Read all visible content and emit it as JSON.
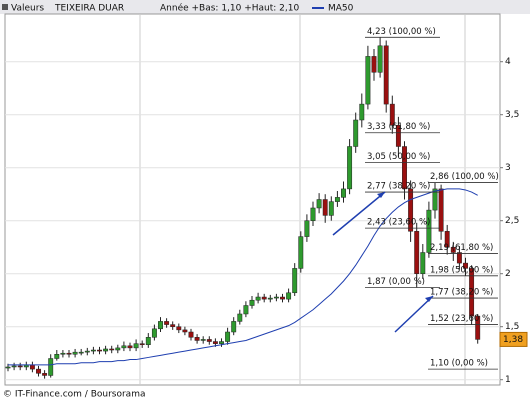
{
  "header": {
    "label": "Valeurs",
    "symbol": "TEIXEIRA DUAR",
    "range_text": "Année +Bas: 1,10 +Haut: 2,10"
  },
  "footer": "© IT-Finance.com / Boursorama",
  "chart_data": {
    "type": "candlestick",
    "categories": [
      null,
      null,
      null,
      null,
      null,
      null,
      null,
      null,
      null,
      null,
      null,
      null,
      null,
      null,
      null,
      null,
      null,
      null,
      null,
      null,
      null,
      null,
      null,
      null,
      null,
      null,
      null,
      null,
      null,
      null,
      null,
      null,
      null,
      null,
      null,
      null,
      null,
      null,
      null,
      null,
      null,
      null,
      null,
      null,
      null,
      null,
      null,
      null,
      null,
      null,
      null,
      null,
      null,
      null,
      null,
      null,
      null,
      null,
      null,
      null,
      null,
      null,
      null,
      null,
      null,
      null,
      null,
      null,
      null,
      null,
      null,
      null,
      null,
      null,
      null,
      null,
      null,
      null
    ],
    "open": [
      1.11,
      1.12,
      1.13,
      1.12,
      1.14,
      1.1,
      1.06,
      1.04,
      1.2,
      1.24,
      1.25,
      1.24,
      1.26,
      1.26,
      1.27,
      1.28,
      1.27,
      1.29,
      1.28,
      1.3,
      1.32,
      1.3,
      1.34,
      1.33,
      1.4,
      1.48,
      1.55,
      1.52,
      1.5,
      1.47,
      1.45,
      1.4,
      1.37,
      1.38,
      1.36,
      1.34,
      1.36,
      1.45,
      1.55,
      1.62,
      1.7,
      1.75,
      1.78,
      1.76,
      1.77,
      1.78,
      1.76,
      1.82,
      2.05,
      2.35,
      2.5,
      2.62,
      2.7,
      2.55,
      2.68,
      2.72,
      2.8,
      3.2,
      3.45,
      3.6,
      4.05,
      3.9,
      4.15,
      3.6,
      3.4,
      3.2,
      2.8,
      2.4,
      2.0,
      2.2,
      2.6,
      2.8,
      2.4,
      2.25,
      2.2,
      2.1,
      2.05,
      1.6
    ],
    "high": [
      1.15,
      1.16,
      1.16,
      1.17,
      1.17,
      1.13,
      1.09,
      1.24,
      1.28,
      1.28,
      1.28,
      1.29,
      1.29,
      1.3,
      1.31,
      1.31,
      1.32,
      1.32,
      1.33,
      1.36,
      1.35,
      1.38,
      1.37,
      1.44,
      1.52,
      1.59,
      1.58,
      1.55,
      1.53,
      1.5,
      1.48,
      1.43,
      1.41,
      1.41,
      1.39,
      1.39,
      1.49,
      1.59,
      1.66,
      1.74,
      1.79,
      1.82,
      1.81,
      1.8,
      1.81,
      1.81,
      1.86,
      2.1,
      2.4,
      2.56,
      2.68,
      2.76,
      2.75,
      2.73,
      2.78,
      2.87,
      3.27,
      3.52,
      3.7,
      4.15,
      4.12,
      4.23,
      4.2,
      3.68,
      3.48,
      3.25,
      2.88,
      2.48,
      2.28,
      2.68,
      2.86,
      2.84,
      2.46,
      2.3,
      2.26,
      2.15,
      2.08,
      1.62
    ],
    "low": [
      1.08,
      1.09,
      1.09,
      1.09,
      1.07,
      1.03,
      1.01,
      1.02,
      1.18,
      1.21,
      1.21,
      1.21,
      1.23,
      1.23,
      1.24,
      1.24,
      1.24,
      1.25,
      1.25,
      1.27,
      1.27,
      1.27,
      1.3,
      1.3,
      1.37,
      1.45,
      1.49,
      1.47,
      1.44,
      1.42,
      1.37,
      1.34,
      1.34,
      1.33,
      1.31,
      1.31,
      1.33,
      1.42,
      1.52,
      1.59,
      1.67,
      1.72,
      1.73,
      1.73,
      1.74,
      1.73,
      1.73,
      1.79,
      2.01,
      2.3,
      2.45,
      2.57,
      2.48,
      2.5,
      2.63,
      2.67,
      2.75,
      3.14,
      3.38,
      3.55,
      3.82,
      3.85,
      3.52,
      3.32,
      3.1,
      2.7,
      2.3,
      1.87,
      1.95,
      2.15,
      2.52,
      2.32,
      2.18,
      2.12,
      2.04,
      1.98,
      1.52,
      1.34
    ],
    "close": [
      1.12,
      1.13,
      1.12,
      1.14,
      1.1,
      1.06,
      1.04,
      1.2,
      1.24,
      1.25,
      1.24,
      1.26,
      1.26,
      1.27,
      1.28,
      1.27,
      1.29,
      1.28,
      1.3,
      1.32,
      1.3,
      1.34,
      1.33,
      1.4,
      1.48,
      1.55,
      1.52,
      1.5,
      1.47,
      1.45,
      1.4,
      1.37,
      1.38,
      1.36,
      1.34,
      1.36,
      1.45,
      1.55,
      1.62,
      1.7,
      1.75,
      1.78,
      1.76,
      1.77,
      1.78,
      1.76,
      1.82,
      2.05,
      2.35,
      2.5,
      2.62,
      2.7,
      2.55,
      2.68,
      2.72,
      2.8,
      3.2,
      3.45,
      3.6,
      4.05,
      3.9,
      4.15,
      3.6,
      3.4,
      3.2,
      2.8,
      2.4,
      2.0,
      2.2,
      2.6,
      2.8,
      2.4,
      2.25,
      2.2,
      2.1,
      2.05,
      1.6,
      1.38
    ],
    "up_color": "#2e9a2e",
    "down_color": "#9a1010",
    "series": [
      {
        "name": "MA50",
        "color": "#1f3fb0",
        "values": [
          1.14,
          1.14,
          1.14,
          1.14,
          1.14,
          1.14,
          1.14,
          1.14,
          1.15,
          1.15,
          1.15,
          1.15,
          1.16,
          1.16,
          1.16,
          1.17,
          1.17,
          1.17,
          1.18,
          1.18,
          1.19,
          1.19,
          1.2,
          1.21,
          1.22,
          1.23,
          1.24,
          1.25,
          1.26,
          1.27,
          1.28,
          1.29,
          1.3,
          1.31,
          1.32,
          1.33,
          1.34,
          1.35,
          1.36,
          1.37,
          1.39,
          1.41,
          1.43,
          1.45,
          1.47,
          1.49,
          1.51,
          1.54,
          1.58,
          1.62,
          1.66,
          1.71,
          1.76,
          1.81,
          1.87,
          1.93,
          2.0,
          2.08,
          2.17,
          2.26,
          2.36,
          2.45,
          2.52,
          2.58,
          2.63,
          2.67,
          2.7,
          2.72,
          2.74,
          2.76,
          2.78,
          2.79,
          2.8,
          2.8,
          2.8,
          2.79,
          2.77,
          2.74
        ]
      }
    ],
    "ylim": [
      0.95,
      4.45
    ],
    "yticks": [
      1,
      {
        "value": 1.5,
        "label": "1,5"
      },
      2,
      {
        "value": 2.5,
        "label": "2,5"
      },
      3,
      {
        "value": 3.5,
        "label": "3,5"
      },
      4
    ],
    "grid": true,
    "last_price": {
      "value": 1.38,
      "label": "1,38"
    },
    "fibonacci": [
      [
        {
          "value": 4.23,
          "label": "4,23 (100,00 %)"
        },
        {
          "value": 3.33,
          "label": "3,33 (61,80 %)"
        },
        {
          "value": 3.05,
          "label": "3,05 (50,00 %)"
        },
        {
          "value": 2.77,
          "label": "2,77 (38,20 %)"
        },
        {
          "value": 2.43,
          "label": "2,43 (23,60 %)"
        },
        {
          "value": 1.87,
          "label": "1,87 (0,00 %)"
        }
      ],
      [
        {
          "value": 2.86,
          "label": "2,86 (100,00 %)"
        },
        {
          "value": 2.19,
          "label": "2,19 (61,80 %)"
        },
        {
          "value": 1.98,
          "label": "1,98 (50,00 %)"
        },
        {
          "value": 1.77,
          "label": "1,77 (38,20 %)"
        },
        {
          "value": 1.52,
          "label": "1,52 (23,60 %)"
        },
        {
          "value": 1.1,
          "label": "1,10 (0,00 %)"
        }
      ]
    ]
  }
}
